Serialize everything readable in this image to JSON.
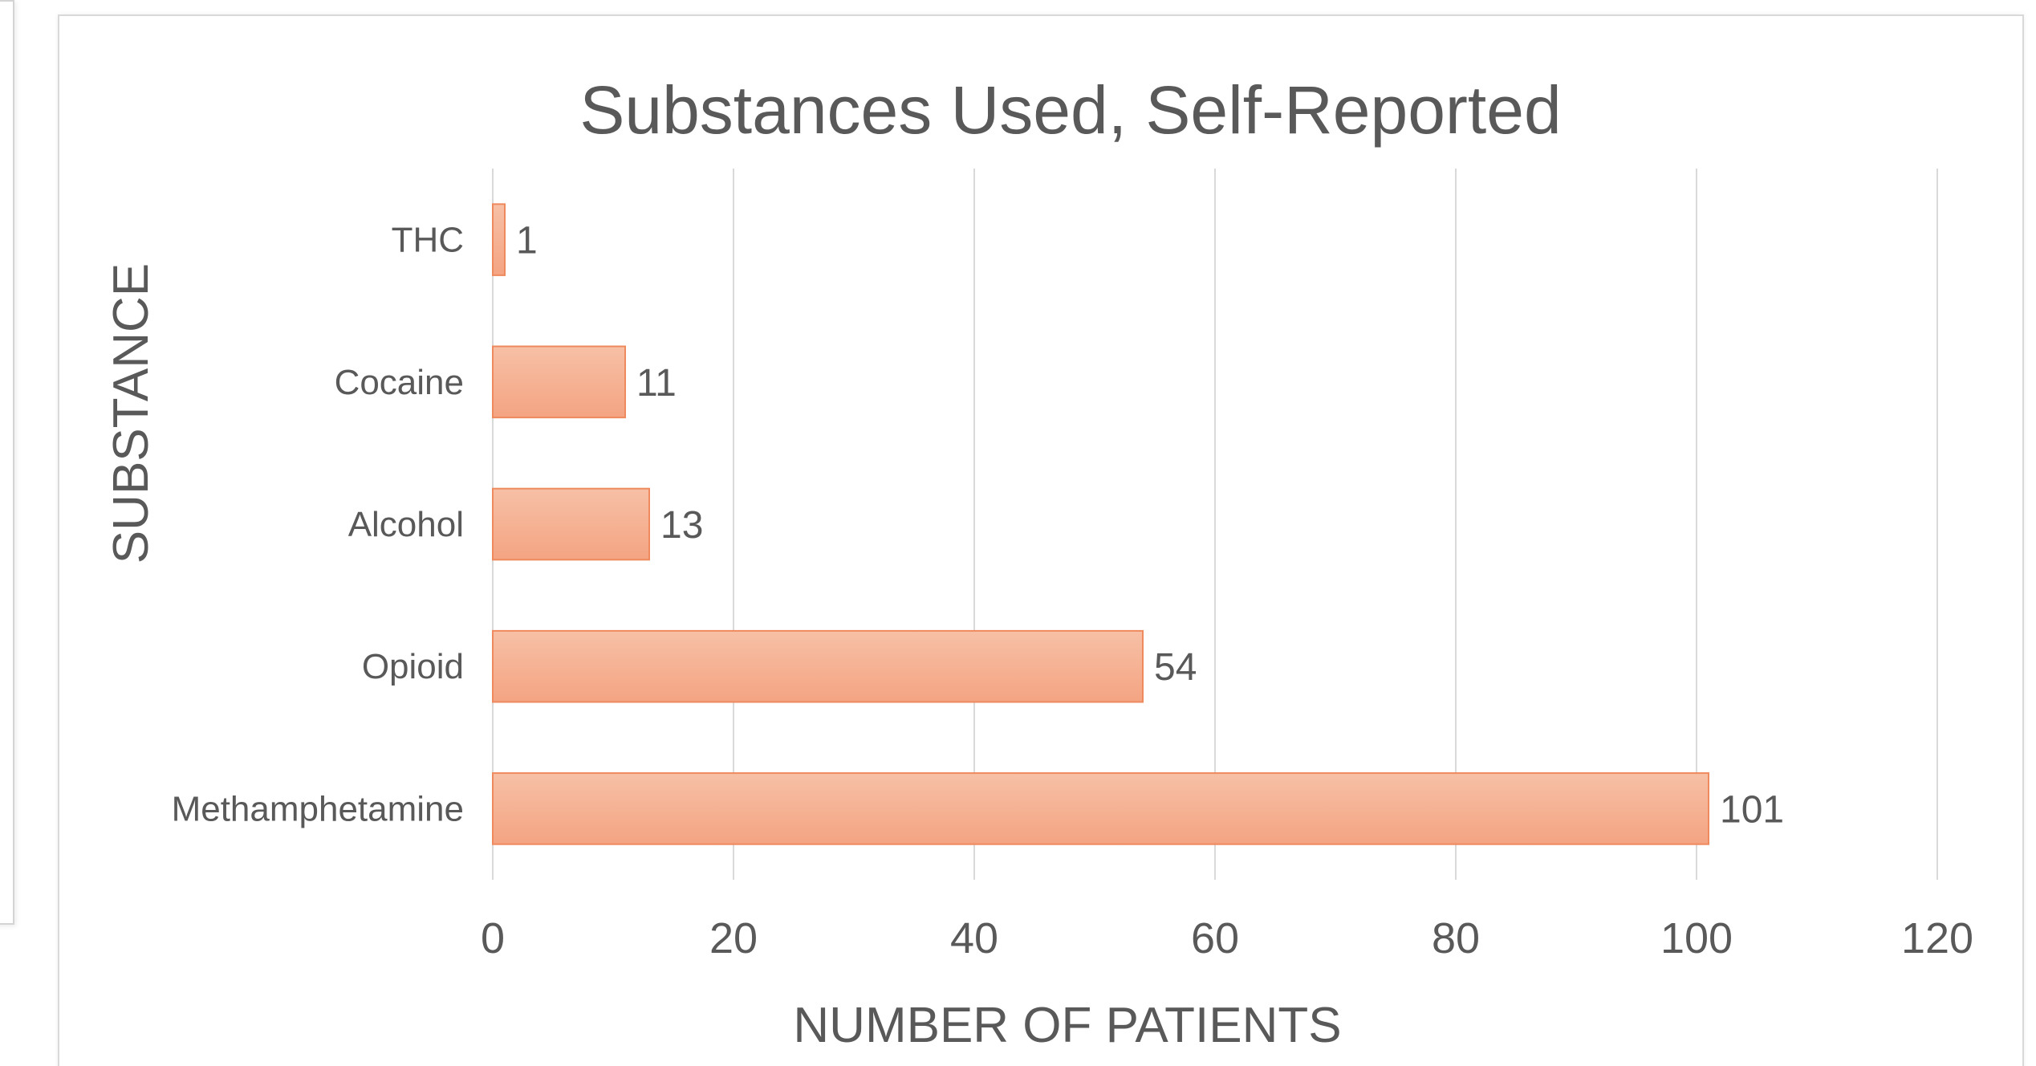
{
  "chart_data": {
    "type": "bar",
    "orientation": "horizontal",
    "title": "Substances Used, Self-Reported",
    "xlabel": "NUMBER OF PATIENTS",
    "ylabel": "SUBSTANCE",
    "categories": [
      "THC",
      "Cocaine",
      "Alcohol",
      "Opioid",
      "Methamphetamine"
    ],
    "values": [
      1,
      11,
      13,
      54,
      101
    ],
    "data_labels": [
      "1",
      "11",
      "13",
      "54",
      "101"
    ],
    "xlim": [
      0,
      120
    ],
    "x_ticks": [
      "0",
      "20",
      "40",
      "60",
      "80",
      "100",
      "120"
    ],
    "grid": "vertical",
    "legend": "none",
    "colors": {
      "bar_fill_top": "#f7c0a6",
      "bar_fill_bottom": "#f4a482",
      "bar_stroke": "#ee8a5e",
      "grid": "#d9d9d9",
      "text": "#595959"
    }
  }
}
